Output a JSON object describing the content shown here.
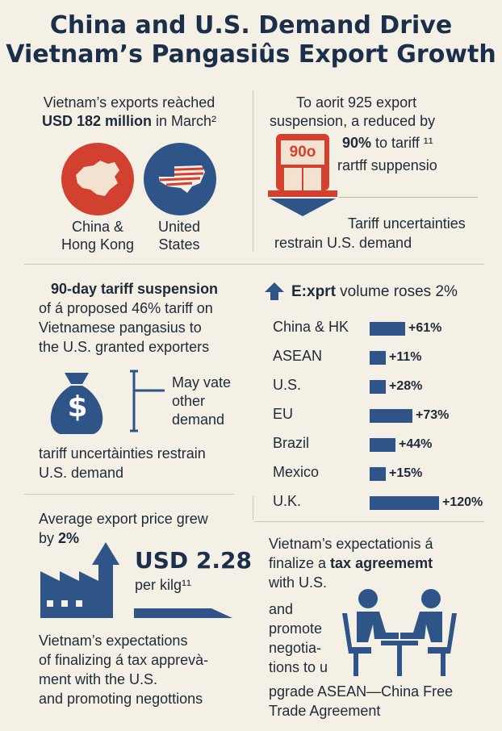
{
  "title": {
    "line1": "China and U.S. Demand Drive",
    "line2": "Vietnam’s Pangasiûs Export Growth"
  },
  "top_left": {
    "line1": "Vietnam’s exports reàched",
    "amount": "USD 182 million",
    "tail": " in March²",
    "china_label_1": "China &",
    "china_label_2": "Hong Kong",
    "us_label_1": "United",
    "us_label_2": "States"
  },
  "top_right": {
    "line1": "To aorit 925 export",
    "line2": "suspension, a reduced by",
    "badge": "90o",
    "pct": "90%",
    "pct_tail": " to tariff ¹¹",
    "line4": "rartff suppensio",
    "caption1": "Tariff uncertainties",
    "caption2": "restrain U.S. demand"
  },
  "mid_left": {
    "heading": "90-day tariff suspension",
    "line2": "of á proposed 46% tariff on",
    "line3": "Vietnamese pangasius to",
    "line4": "the U.S. granted exporters",
    "side1": "May vate",
    "side2": "other",
    "side3": "demand",
    "footer1": "tariff uncertàinties restrain",
    "footer2": "U.S. demand",
    "dollar": "$"
  },
  "chart_header": {
    "title_prefix": "E:xprt",
    "title_rest": " volume roses 2%"
  },
  "chart_data": {
    "type": "bar",
    "title": "E:xprt volume roses 2%",
    "categories": [
      "China & HK",
      "ASEAN",
      "U.S.",
      "EU",
      "Brazil",
      "Mexico",
      "U.K."
    ],
    "values": [
      61,
      11,
      28,
      73,
      44,
      15,
      120
    ],
    "value_labels": [
      "+61%",
      "+11%",
      "+28%",
      "+73%",
      "+44%",
      "+15%",
      "+120%"
    ],
    "unit": "%",
    "orientation": "horizontal",
    "color": "#2f5588"
  },
  "bottom_left": {
    "line1": "Average export price grew",
    "line2_pre": "by ",
    "line2_bold": "2%",
    "price": "USD 2.28",
    "per": "per kilg¹¹",
    "foot1": "Vietnam’s expectations",
    "foot2": "of finalizing á tax apprevà-",
    "foot3": "ment with the U.S.",
    "foot4": "and promoting negottions"
  },
  "bottom_right": {
    "line1": "Vietnam’s expectationis á",
    "line2_pre": "finalize a ",
    "line2_bold": "tax agreememt",
    "line3": "with U.S.",
    "line4": "and",
    "line5": "promote",
    "line6": "negotia-",
    "line7": "tions to u",
    "line8": "pgrade ASEAN—China Free",
    "line9": "Trade Agreement"
  },
  "colors": {
    "background": "#f4f0e6",
    "navy": "#2f5588",
    "red": "#d2402f",
    "dark": "#1c2f4a"
  }
}
